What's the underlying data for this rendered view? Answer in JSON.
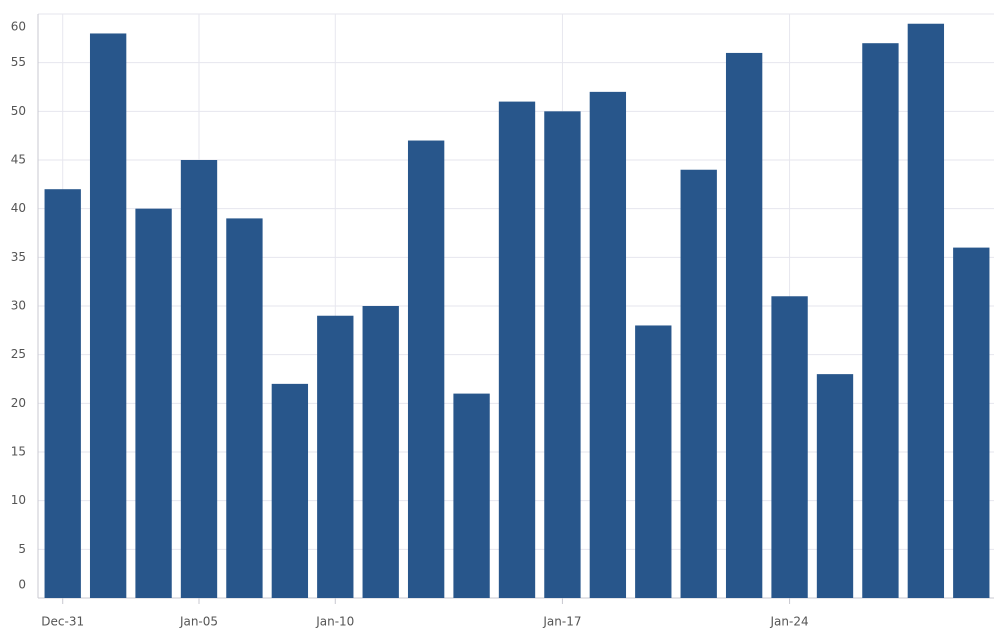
{
  "chart_data": {
    "type": "bar",
    "categories": [
      "Dec-31",
      null,
      null,
      "Jan-05",
      null,
      null,
      "Jan-10",
      null,
      null,
      null,
      null,
      "Jan-17",
      null,
      null,
      null,
      null,
      "Jan-24",
      null,
      null,
      null,
      null
    ],
    "values": [
      42,
      58,
      40,
      45,
      39,
      22,
      29,
      30,
      47,
      21,
      51,
      50,
      52,
      28,
      44,
      56,
      31,
      23,
      57,
      59,
      36
    ],
    "color": "#28568b",
    "ylim": [
      0,
      60
    ],
    "yticks": [
      0,
      5,
      10,
      15,
      20,
      25,
      30,
      35,
      40,
      45,
      50,
      55,
      60
    ],
    "grid": true
  }
}
